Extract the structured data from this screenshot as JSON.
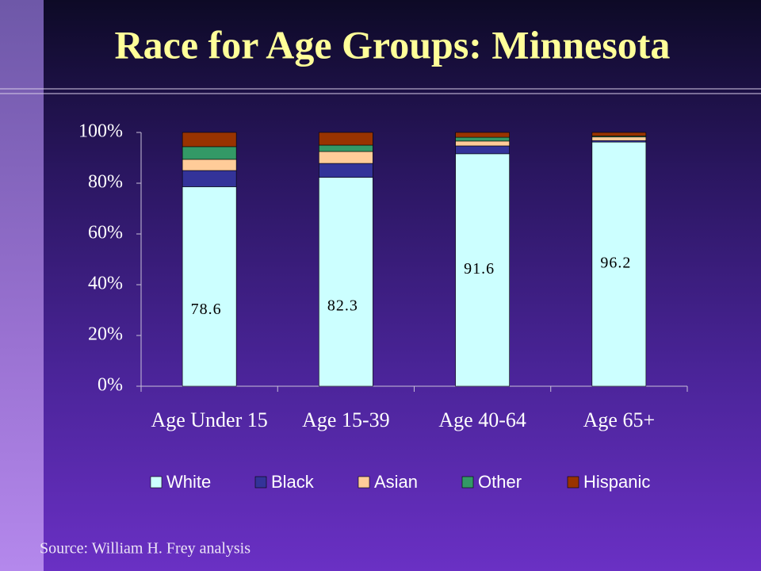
{
  "chart_data": {
    "type": "stacked-bar",
    "title": "Race for Age Groups: Minnesota",
    "source": "Source: William H. Frey analysis",
    "categories": [
      "Age Under 15",
      "Age 15-39",
      "Age 40-64",
      "Age 65+"
    ],
    "series": [
      {
        "name": "White",
        "color": "#ccffff",
        "values": [
          78.6,
          82.3,
          91.6,
          96.2
        ]
      },
      {
        "name": "Black",
        "color": "#333399",
        "values": [
          6.4,
          5.5,
          3.1,
          0.6
        ]
      },
      {
        "name": "Asian",
        "color": "#ffcc99",
        "values": [
          4.4,
          4.7,
          1.9,
          1.4
        ]
      },
      {
        "name": "Other",
        "color": "#339966",
        "values": [
          5.0,
          2.5,
          1.5,
          0.4
        ]
      },
      {
        "name": "Hispanic",
        "color": "#993300",
        "values": [
          5.6,
          5.0,
          1.9,
          1.4
        ]
      }
    ],
    "data_labels_series": 0,
    "ylim": [
      0,
      100
    ],
    "yticks": [
      {
        "value": 0,
        "label": "0%"
      },
      {
        "value": 20,
        "label": "20%"
      },
      {
        "value": 40,
        "label": "40%"
      },
      {
        "value": 60,
        "label": "60%"
      },
      {
        "value": 80,
        "label": "80%"
      },
      {
        "value": 100,
        "label": "100%"
      }
    ],
    "legend": "bottom"
  }
}
